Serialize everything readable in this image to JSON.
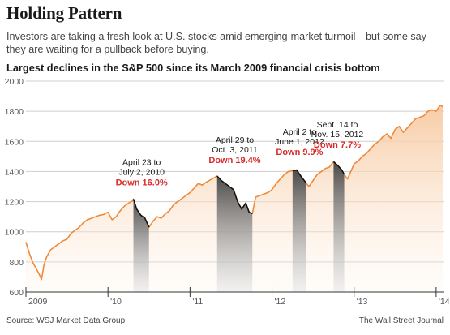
{
  "header": {
    "title": "Holding Pattern",
    "subtitle": "Investors are taking a fresh look at U.S. stocks amid emerging-market turmoil—but some say they are waiting for a pullback before buying.",
    "chart_heading": "Largest declines in the S&P 500 since its March 2009 financial crisis bottom"
  },
  "footer": {
    "source": "Source: WSJ Market Data Group",
    "credit": "The Wall Street Journal"
  },
  "colors": {
    "line": "#f08a3a",
    "decline_line": "#111111",
    "decline_band": "#555555",
    "fill_top": "#f7c9a1",
    "annotation": "#d92b2b",
    "grid": "#cfcfcf"
  },
  "chart_data": {
    "type": "area",
    "title": "Largest declines in the S&P 500 since its March 2009 financial crisis bottom",
    "xlabel": "",
    "ylabel": "",
    "ylim": [
      600,
      2000
    ],
    "xlim": [
      2009.0,
      2014.1
    ],
    "yticks": [
      600,
      800,
      1000,
      1200,
      1400,
      1600,
      1800,
      2000
    ],
    "xticks": [
      {
        "label": "2009",
        "x": 2009.0
      },
      {
        "label": "'10",
        "x": 2010.0
      },
      {
        "label": "'11",
        "x": 2011.0
      },
      {
        "label": "'12",
        "x": 2012.0
      },
      {
        "label": "'13",
        "x": 2013.0
      },
      {
        "label": "'14",
        "x": 2014.0
      }
    ],
    "grid": true,
    "series": [
      {
        "x": [
          2009.0,
          2009.04,
          2009.08,
          2009.12,
          2009.16,
          2009.19,
          2009.22,
          2009.25,
          2009.3,
          2009.35,
          2009.4,
          2009.45,
          2009.5,
          2009.55,
          2009.6,
          2009.65,
          2009.7,
          2009.75,
          2009.8,
          2009.85,
          2009.9,
          2009.95,
          2010.0,
          2010.05,
          2010.1,
          2010.15,
          2010.2,
          2010.25,
          2010.3,
          2010.31,
          2010.35,
          2010.4,
          2010.45,
          2010.5,
          2010.55,
          2010.6,
          2010.65,
          2010.7,
          2010.75,
          2010.8,
          2010.85,
          2010.9,
          2010.95,
          2011.0,
          2011.05,
          2011.1,
          2011.15,
          2011.2,
          2011.25,
          2011.3,
          2011.33,
          2011.38,
          2011.43,
          2011.48,
          2011.53,
          2011.58,
          2011.63,
          2011.68,
          2011.72,
          2011.76,
          2011.8,
          2011.85,
          2011.9,
          2011.95,
          2012.0,
          2012.05,
          2012.1,
          2012.15,
          2012.2,
          2012.25,
          2012.3,
          2012.35,
          2012.42,
          2012.45,
          2012.5,
          2012.55,
          2012.6,
          2012.65,
          2012.7,
          2012.75,
          2012.8,
          2012.85,
          2012.88,
          2012.92,
          2012.96,
          2013.0,
          2013.05,
          2013.1,
          2013.15,
          2013.2,
          2013.25,
          2013.3,
          2013.35,
          2013.4,
          2013.45,
          2013.5,
          2013.55,
          2013.6,
          2013.65,
          2013.7,
          2013.75,
          2013.8,
          2013.85,
          2013.9,
          2013.95,
          2014.0,
          2014.05,
          2014.08
        ],
        "y": [
          931,
          860,
          800,
          760,
          720,
          683,
          780,
          830,
          880,
          900,
          920,
          940,
          950,
          990,
          1010,
          1030,
          1060,
          1080,
          1090,
          1100,
          1110,
          1115,
          1130,
          1080,
          1100,
          1140,
          1170,
          1190,
          1205,
          1217,
          1150,
          1110,
          1090,
          1030,
          1070,
          1100,
          1090,
          1120,
          1140,
          1180,
          1200,
          1220,
          1240,
          1260,
          1290,
          1320,
          1310,
          1330,
          1345,
          1360,
          1370,
          1340,
          1320,
          1300,
          1280,
          1200,
          1150,
          1190,
          1130,
          1120,
          1230,
          1240,
          1250,
          1260,
          1280,
          1320,
          1350,
          1380,
          1400,
          1405,
          1410,
          1370,
          1320,
          1300,
          1340,
          1380,
          1400,
          1420,
          1430,
          1465,
          1440,
          1410,
          1380,
          1350,
          1400,
          1450,
          1470,
          1500,
          1520,
          1550,
          1580,
          1600,
          1630,
          1650,
          1620,
          1680,
          1700,
          1660,
          1690,
          1720,
          1750,
          1760,
          1770,
          1800,
          1810,
          1800,
          1840,
          1830
        ]
      }
    ],
    "declines": [
      {
        "dates_label": [
          "April 23 to",
          "July 2, 2010"
        ],
        "down_label": "Down 16.0%",
        "start_value": 1217,
        "end_value": 1022,
        "x0": 2010.31,
        "x1": 2010.51
      },
      {
        "dates_label": [
          "April 29 to",
          "Oct. 3, 2011"
        ],
        "down_label": "Down 19.4%",
        "start_value": 1364,
        "end_value": 1099,
        "x0": 2011.33,
        "x1": 2011.76
      },
      {
        "dates_label": [
          "April 2 to",
          "June 1, 2012"
        ],
        "down_label": "Down 9.9%",
        "start_value": 1419,
        "end_value": 1278,
        "x0": 2012.25,
        "x1": 2012.42
      },
      {
        "dates_label": [
          "Sept. 14 to",
          "Nov. 15, 2012"
        ],
        "down_label": "Down 7.7%",
        "start_value": 1466,
        "end_value": 1353,
        "x0": 2012.71,
        "x1": 2012.88
      }
    ]
  }
}
